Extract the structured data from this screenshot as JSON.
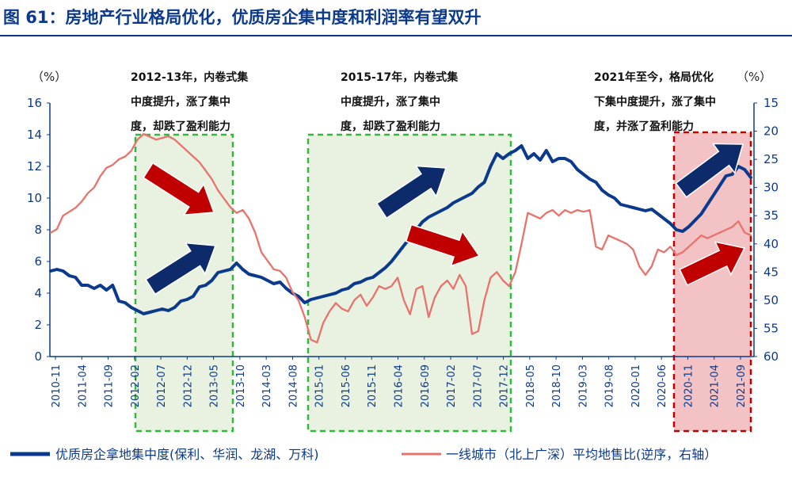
{
  "title": "图 61：房地产行业格局优化，优质房企集中度和利润率有望双升",
  "chart_data": {
    "type": "line",
    "left_unit": "（%）",
    "right_unit": "（%）",
    "left_ylim": [
      0,
      16
    ],
    "left_yticks": [
      "0",
      "2",
      "4",
      "6",
      "8",
      "10",
      "12",
      "14",
      "16"
    ],
    "right_ylim": [
      60,
      15
    ],
    "right_yticks": [
      "15",
      "20",
      "25",
      "30",
      "35",
      "40",
      "45",
      "50",
      "55",
      "60"
    ],
    "right_axis_reversed": true,
    "x_tick_labels": [
      "2010-11",
      "2011-04",
      "2011-09",
      "2012-02",
      "2012-07",
      "2012-12",
      "2013-05",
      "2013-10",
      "2014-03",
      "2014-08",
      "2015-01",
      "2015-06",
      "2015-11",
      "2016-04",
      "2016-09",
      "2017-02",
      "2017-07",
      "2017-12",
      "2018-05",
      "2018-10",
      "2019-03",
      "2019-08",
      "2020-01",
      "2020-06",
      "2020-11",
      "2021-04",
      "2021-09"
    ],
    "series": [
      {
        "name": "优质房企拿地集中度(保利、华润、龙湖、万科)",
        "axis": "left",
        "color": "#0b3a8c",
        "values": [
          5.4,
          5.5,
          5.4,
          5.1,
          5.0,
          4.5,
          4.5,
          4.3,
          4.5,
          4.2,
          4.5,
          3.5,
          3.4,
          3.1,
          2.9,
          2.7,
          2.8,
          2.9,
          3.0,
          2.9,
          3.1,
          3.5,
          3.6,
          3.8,
          4.4,
          4.5,
          4.8,
          5.3,
          5.4,
          5.5,
          5.9,
          5.5,
          5.2,
          5.1,
          5.0,
          4.8,
          4.6,
          4.7,
          4.3,
          4.0,
          3.8,
          3.4,
          3.6,
          3.7,
          3.8,
          3.9,
          4.0,
          4.2,
          4.3,
          4.6,
          4.7,
          4.9,
          5.0,
          5.3,
          5.6,
          6.0,
          6.5,
          7.0,
          7.5,
          8.0,
          8.5,
          8.8,
          9.0,
          9.2,
          9.4,
          9.7,
          9.9,
          10.1,
          10.3,
          10.7,
          11.0,
          12.0,
          12.8,
          12.5,
          12.8,
          13.0,
          13.3,
          12.5,
          12.8,
          12.4,
          13.0,
          12.3,
          12.5,
          12.5,
          12.3,
          11.8,
          11.5,
          11.2,
          11.0,
          10.5,
          10.2,
          10.0,
          9.6,
          9.5,
          9.4,
          9.3,
          9.2,
          9.3,
          9.0,
          8.7,
          8.4,
          8.0,
          7.9,
          8.2,
          8.6,
          9.0,
          9.6,
          10.2,
          10.8,
          11.4,
          11.5,
          12.0,
          11.8,
          11.3
        ]
      },
      {
        "name": "一线城市（北上广深）平均地售比(逆序，右轴）",
        "axis": "right",
        "color": "#e8736c",
        "values": [
          38.0,
          37.4,
          35.0,
          34.3,
          33.6,
          32.5,
          31.0,
          30.0,
          28.0,
          26.5,
          26.0,
          25.0,
          24.5,
          23.5,
          21.5,
          20.5,
          21.0,
          21.5,
          21.2,
          20.9,
          21.5,
          22.5,
          23.5,
          24.5,
          25.5,
          27.0,
          28.5,
          30.5,
          32.0,
          33.5,
          34.5,
          34.0,
          35.5,
          38.0,
          41.5,
          43.0,
          44.5,
          44.8,
          46.0,
          48.5,
          50.0,
          53.0,
          57.0,
          57.5,
          54.0,
          52.0,
          50.5,
          51.5,
          52.0,
          50.0,
          49.0,
          51.0,
          49.5,
          47.5,
          48.0,
          47.5,
          46.0,
          50.0,
          52.5,
          48.0,
          47.5,
          53.0,
          49.5,
          47.5,
          46.5,
          48.0,
          45.5,
          47.5,
          56.0,
          55.5,
          50.0,
          46.0,
          45.0,
          46.5,
          47.5,
          45.0,
          40.0,
          34.5,
          35.0,
          35.5,
          34.5,
          34.0,
          35.0,
          34.0,
          34.5,
          34.0,
          34.3,
          34.0,
          40.5,
          41.0,
          38.5,
          39.0,
          39.5,
          40.0,
          41.0,
          44.0,
          45.5,
          44.0,
          41.0,
          41.5,
          40.5,
          42.0,
          41.5,
          40.5,
          39.5,
          38.5,
          39.0,
          38.5,
          38.0,
          37.5,
          37.0,
          36.0,
          38.0,
          38.5
        ]
      }
    ],
    "annotations": [
      {
        "lines": [
          "2012-13年，内卷式集",
          "中度提升，涨了集中",
          "度，却跌了盈利能力"
        ]
      },
      {
        "lines": [
          "2015-17年，内卷式集",
          "中度提升，涨了集中",
          "度，却跌了盈利能力"
        ]
      },
      {
        "lines": [
          "2021年至今，格局优化",
          "下集中度提升，涨了集中",
          "度，并涨了盈利能力"
        ]
      }
    ],
    "colors": {
      "navy": "#0b3a8c",
      "red_line": "#e8736c",
      "arrow_navy": "#0d2a6b",
      "arrow_red": "#c00000",
      "green_box": "#2ebb3b",
      "green_fill": "#e9f2e1",
      "red_box": "#c00000",
      "red_fill": "#f2c2c4"
    }
  }
}
